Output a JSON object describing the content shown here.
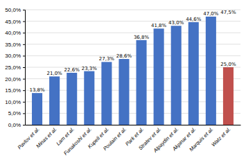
{
  "chart_data": {
    "type": "bar",
    "categories": [
      "Pavlov et al.",
      "Minas et al.",
      "Lam et al.",
      "Funakoshi et al.",
      "Kupeli et al.",
      "Poulain et al.",
      "Park et al.",
      "Stratev et al.",
      "Alpaydin et al.",
      "Akpinar et al.",
      "Marquis et al.",
      "Watz et al."
    ],
    "values": [
      13.8,
      21.0,
      22.6,
      23.3,
      27.3,
      28.6,
      36.8,
      41.8,
      43.0,
      44.6,
      47.0,
      25.0
    ],
    "value_labels": [
      "13,8%",
      "21,0%",
      "22,6%",
      "23,3%",
      "27,3%",
      "28,6%",
      "36,8%",
      "41,8%",
      "43,0%",
      "44,6%",
      "47,0%",
      "25,0%"
    ],
    "data_labels": true,
    "colors": [
      "#4472C4",
      "#4472C4",
      "#4472C4",
      "#4472C4",
      "#4472C4",
      "#4472C4",
      "#4472C4",
      "#4472C4",
      "#4472C4",
      "#4472C4",
      "#4472C4",
      "#C0504D"
    ],
    "annotations": [
      {
        "text": "47,5%",
        "value": 47.5,
        "x": "Watz et al."
      }
    ],
    "ylim": [
      0,
      50
    ],
    "yticks": [
      {
        "value": 0,
        "label": "0,0%"
      },
      {
        "value": 5,
        "label": "5,0%"
      },
      {
        "value": 10,
        "label": "10,0%"
      },
      {
        "value": 15,
        "label": "15,0%"
      },
      {
        "value": 20,
        "label": "20,0%"
      },
      {
        "value": 25,
        "label": "25,0%"
      },
      {
        "value": 30,
        "label": "30,0%"
      },
      {
        "value": 35,
        "label": "35,0%"
      },
      {
        "value": 40,
        "label": "40,0%"
      },
      {
        "value": 45,
        "label": "45,0%"
      },
      {
        "value": 50,
        "label": "50,0%"
      }
    ],
    "grid": true
  }
}
